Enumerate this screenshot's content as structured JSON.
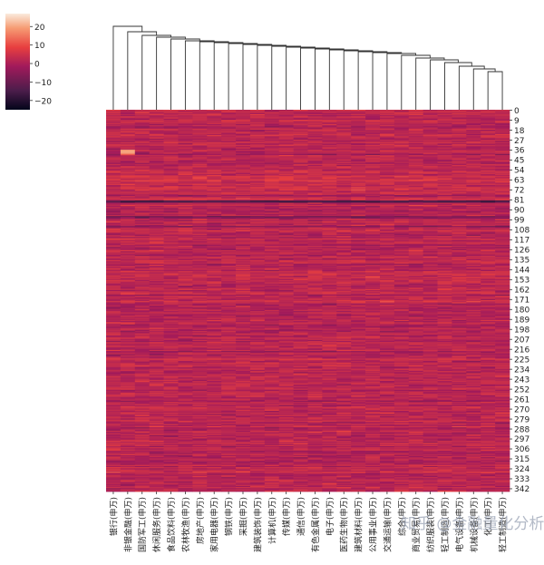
{
  "chart_data": {
    "type": "heatmap",
    "title": "",
    "xlabel": "",
    "ylabel": "",
    "colorbar": {
      "ticks": [
        20,
        10,
        0,
        -10,
        -20
      ],
      "tick_labels": [
        "20",
        "10",
        "0",
        "−10",
        "−20"
      ],
      "range": [
        -25,
        27
      ],
      "colormap": "rocket",
      "colors": [
        "#03051a",
        "#4c1d4b",
        "#a11a5b",
        "#e83f3f",
        "#f69c73",
        "#faebdd"
      ]
    },
    "columns": [
      "银行(申万)",
      "非银金融(申万)",
      "国防军工(申万)",
      "休闲服务(申万)",
      "食品饮料(申万)",
      "农林牧渔(申万)",
      "房地产(申万)",
      "家用电器(申万)",
      "钢铁(申万)",
      "采掘(申万)",
      "建筑装饰(申万)",
      "计算机(申万)",
      "传媒(申万)",
      "通信(申万)",
      "有色金属(申万)",
      "电子(申万)",
      "医药生物(申万)",
      "建筑材料(申万)",
      "公用事业(申万)",
      "交通运输(申万)",
      "综合(申万)",
      "商业贸易(申万)",
      "纺织服装(申万)",
      "轻工制造(申万)",
      "电气设备(申万)",
      "机械设备(申万)",
      "化工(申万)",
      "轻工制造(申万)"
    ],
    "row_tick_labels": [
      "0",
      "9",
      "18",
      "27",
      "36",
      "45",
      "54",
      "63",
      "72",
      "81",
      "90",
      "99",
      "108",
      "117",
      "126",
      "135",
      "144",
      "153",
      "162",
      "171",
      "180",
      "189",
      "198",
      "207",
      "216",
      "225",
      "234",
      "243",
      "252",
      "261",
      "270",
      "279",
      "288",
      "297",
      "306",
      "315",
      "324",
      "333",
      "342"
    ],
    "n_rows": 345,
    "grid": false,
    "colorbar_position": "top-left",
    "dendrogram": "top"
  },
  "watermark": "知乎 @金融量化分析"
}
